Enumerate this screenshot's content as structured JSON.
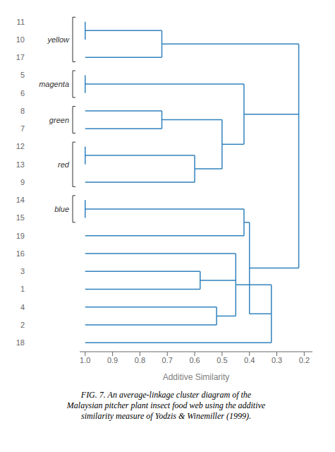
{
  "chart_data": {
    "type": "dendrogram",
    "title": "FIG. 7. An average-linkage cluster diagram of the\nMalaysian pitcher plant insect food web using the additive\nsimilarity measure of Yodzis & Winemiller (1999).",
    "xlabel": "Additive Similarity",
    "categories": [
      "11",
      "10",
      "17",
      "5",
      "6",
      "8",
      "7",
      "12",
      "13",
      "9",
      "14",
      "15",
      "19",
      "16",
      "3",
      "1",
      "4",
      "2",
      "18"
    ],
    "tree": {
      "similarity": 0.22,
      "children": [
        {
          "similarity": 0.72,
          "children": [
            {
              "similarity": 1.0,
              "children": [
                {
                  "name": "11",
                  "similarity": 1.0
                },
                {
                  "name": "10",
                  "similarity": 1.0
                }
              ]
            },
            {
              "name": "17",
              "similarity": 1.0
            }
          ]
        },
        {
          "similarity": 0.42,
          "children": [
            {
              "similarity": 1.0,
              "children": [
                {
                  "name": "5",
                  "similarity": 1.0
                },
                {
                  "name": "6",
                  "similarity": 1.0
                }
              ]
            },
            {
              "similarity": 0.5,
              "children": [
                {
                  "similarity": 0.72,
                  "children": [
                    {
                      "name": "8",
                      "similarity": 1.0
                    },
                    {
                      "name": "7",
                      "similarity": 1.0
                    }
                  ]
                },
                {
                  "similarity": 0.6,
                  "children": [
                    {
                      "similarity": 1.0,
                      "children": [
                        {
                          "name": "12",
                          "similarity": 1.0
                        },
                        {
                          "name": "13",
                          "similarity": 1.0
                        }
                      ]
                    },
                    {
                      "name": "9",
                      "similarity": 1.0
                    }
                  ]
                }
              ]
            }
          ]
        },
        {
          "similarity": 0.4,
          "children": [
            {
              "similarity": 0.42,
              "children": [
                {
                  "similarity": 1.0,
                  "children": [
                    {
                      "name": "14",
                      "similarity": 1.0
                    },
                    {
                      "name": "15",
                      "similarity": 1.0
                    }
                  ]
                },
                {
                  "name": "19",
                  "similarity": 1.0
                }
              ]
            },
            {
              "similarity": 0.32,
              "children": [
                {
                  "similarity": 0.45,
                  "children": [
                    {
                      "name": "16",
                      "similarity": 1.0
                    },
                    {
                      "similarity": 0.58,
                      "children": [
                        {
                          "name": "3",
                          "similarity": 1.0
                        },
                        {
                          "name": "1",
                          "similarity": 1.0
                        }
                      ]
                    },
                    {
                      "similarity": 0.52,
                      "children": [
                        {
                          "name": "4",
                          "similarity": 1.0
                        },
                        {
                          "name": "2",
                          "similarity": 1.0
                        }
                      ]
                    }
                  ]
                },
                {
                  "name": "18",
                  "similarity": 1.0
                }
              ]
            }
          ]
        }
      ]
    },
    "groups": [
      {
        "name": "yellow",
        "leaves": [
          "11",
          "10",
          "17"
        ]
      },
      {
        "name": "magenta",
        "leaves": [
          "5",
          "6"
        ]
      },
      {
        "name": "green",
        "leaves": [
          "8",
          "7"
        ]
      },
      {
        "name": "red",
        "leaves": [
          "12",
          "13",
          "9"
        ]
      },
      {
        "name": "blue",
        "leaves": [
          "14",
          "15"
        ]
      }
    ],
    "xlim": [
      1.02,
      0.17
    ],
    "xticks": [
      {
        "value": 1.0,
        "label": "1.0"
      },
      0.9,
      0.8,
      0.7,
      0.6,
      0.5,
      0.4,
      0.3,
      0.2
    ],
    "grid": false
  }
}
